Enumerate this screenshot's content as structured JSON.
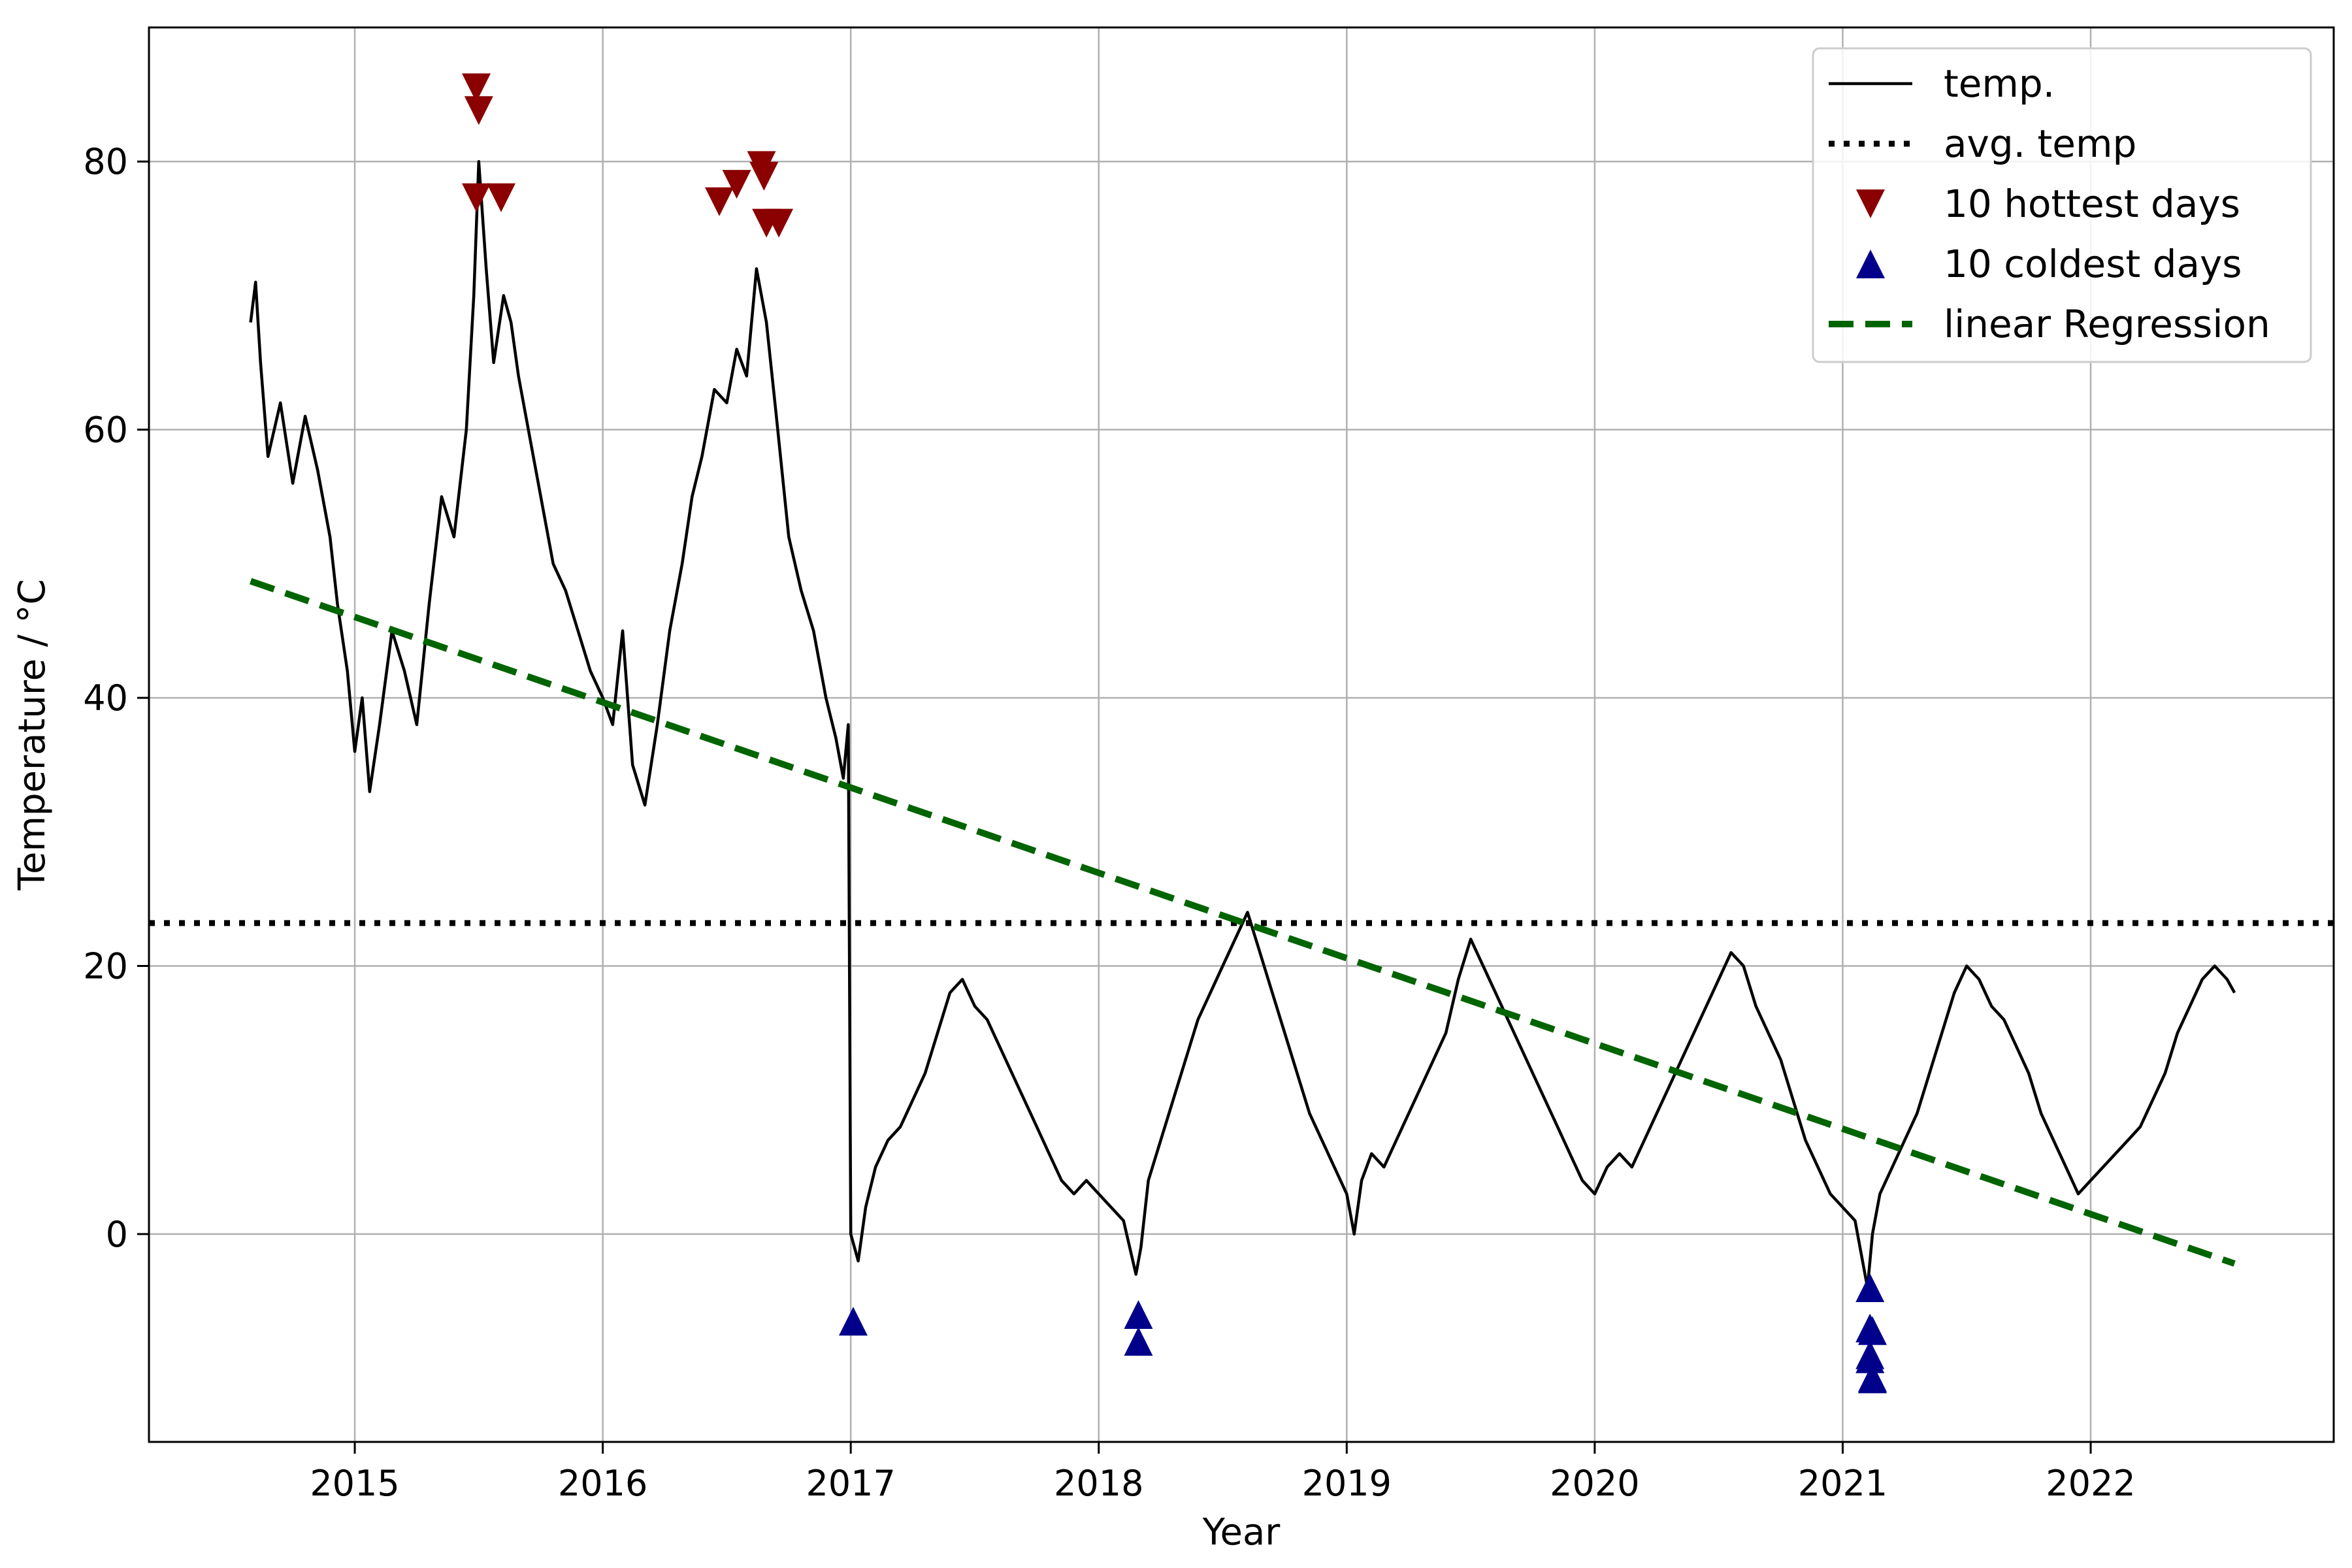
{
  "chart_data": {
    "type": "line",
    "title": "",
    "xlabel": "Year",
    "ylabel": "Temperature / °C",
    "xlim": [
      2014.17,
      2022.98
    ],
    "ylim": [
      -15.5,
      90
    ],
    "x_ticks": [
      2015,
      2016,
      2017,
      2018,
      2019,
      2020,
      2021,
      2022
    ],
    "x_tick_labels": [
      "2015",
      "2016",
      "2017",
      "2018",
      "2019",
      "2020",
      "2021",
      "2022"
    ],
    "y_ticks": [
      0,
      20,
      40,
      60,
      80
    ],
    "y_tick_labels": [
      "0",
      "20",
      "40",
      "60",
      "80"
    ],
    "grid": true,
    "legend_position": "top-right",
    "colors": {
      "temp": "#000000",
      "avg": "#000000",
      "hottest": "#8b0000",
      "coldest": "#00008b",
      "regression": "#006400",
      "grid": "#b0b0b0"
    },
    "series": [
      {
        "name": "temp.",
        "style": "solid",
        "x": [
          2014.58,
          2014.6,
          2014.62,
          2014.65,
          2014.7,
          2014.75,
          2014.8,
          2014.85,
          2014.9,
          2014.93,
          2014.97,
          2015.0,
          2015.03,
          2015.06,
          2015.1,
          2015.15,
          2015.2,
          2015.25,
          2015.3,
          2015.35,
          2015.4,
          2015.45,
          2015.48,
          2015.5,
          2015.53,
          2015.56,
          2015.6,
          2015.63,
          2015.66,
          2015.7,
          2015.75,
          2015.8,
          2015.85,
          2015.9,
          2015.95,
          2016.0,
          2016.04,
          2016.08,
          2016.12,
          2016.17,
          2016.22,
          2016.27,
          2016.32,
          2016.36,
          2016.4,
          2016.45,
          2016.5,
          2016.54,
          2016.58,
          2016.62,
          2016.66,
          2016.7,
          2016.75,
          2016.8,
          2016.85,
          2016.9,
          2016.94,
          2016.97,
          2016.99,
          2017.0,
          2017.03,
          2017.06,
          2017.1,
          2017.15,
          2017.2,
          2017.25,
          2017.3,
          2017.35,
          2017.4,
          2017.45,
          2017.5,
          2017.55,
          2017.6,
          2017.65,
          2017.7,
          2017.75,
          2017.8,
          2017.85,
          2017.9,
          2017.95,
          2018.0,
          2018.05,
          2018.1,
          2018.15,
          2018.17,
          2018.2,
          2018.25,
          2018.3,
          2018.35,
          2018.4,
          2018.45,
          2018.5,
          2018.55,
          2018.6,
          2018.65,
          2018.7,
          2018.75,
          2018.8,
          2018.85,
          2018.9,
          2018.95,
          2019.0,
          2019.03,
          2019.06,
          2019.1,
          2019.15,
          2019.2,
          2019.25,
          2019.3,
          2019.35,
          2019.4,
          2019.45,
          2019.5,
          2019.55,
          2019.6,
          2019.65,
          2019.7,
          2019.75,
          2019.8,
          2019.85,
          2019.9,
          2019.95,
          2020.0,
          2020.05,
          2020.1,
          2020.15,
          2020.2,
          2020.25,
          2020.3,
          2020.35,
          2020.4,
          2020.45,
          2020.5,
          2020.55,
          2020.6,
          2020.65,
          2020.7,
          2020.75,
          2020.8,
          2020.85,
          2020.9,
          2020.95,
          2021.0,
          2021.05,
          2021.1,
          2021.12,
          2021.15,
          2021.2,
          2021.25,
          2021.3,
          2021.35,
          2021.4,
          2021.45,
          2021.5,
          2021.55,
          2021.6,
          2021.65,
          2021.7,
          2021.75,
          2021.8,
          2021.85,
          2021.9,
          2021.95,
          2022.0,
          2022.05,
          2022.1,
          2022.15,
          2022.2,
          2022.25,
          2022.3,
          2022.35,
          2022.4,
          2022.45,
          2022.5,
          2022.55,
          2022.58
        ],
        "y": [
          68,
          71,
          65,
          58,
          62,
          56,
          61,
          57,
          52,
          47,
          42,
          36,
          40,
          33,
          38,
          45,
          42,
          38,
          47,
          55,
          52,
          60,
          70,
          80,
          72,
          65,
          70,
          68,
          64,
          60,
          55,
          50,
          48,
          45,
          42,
          40,
          38,
          45,
          35,
          32,
          38,
          45,
          50,
          55,
          58,
          63,
          62,
          66,
          64,
          72,
          68,
          61,
          52,
          48,
          45,
          40,
          37,
          34,
          38,
          0,
          -2,
          2,
          5,
          7,
          8,
          10,
          12,
          15,
          18,
          19,
          17,
          16,
          14,
          12,
          10,
          8,
          6,
          4,
          3,
          4,
          3,
          2,
          1,
          -3,
          -1,
          4,
          7,
          10,
          13,
          16,
          18,
          20,
          22,
          24,
          21,
          18,
          15,
          12,
          9,
          7,
          5,
          3,
          0,
          4,
          6,
          5,
          7,
          9,
          11,
          13,
          15,
          19,
          22,
          20,
          18,
          16,
          14,
          12,
          10,
          8,
          6,
          4,
          3,
          5,
          6,
          5,
          7,
          9,
          11,
          13,
          15,
          17,
          19,
          21,
          20,
          17,
          15,
          13,
          10,
          7,
          5,
          3,
          2,
          1,
          -4,
          0,
          3,
          5,
          7,
          9,
          12,
          15,
          18,
          20,
          19,
          17,
          16,
          14,
          12,
          9,
          7,
          5,
          3,
          4,
          5,
          6,
          7,
          8,
          10,
          12,
          15,
          17,
          19,
          20,
          19,
          18
        ]
      },
      {
        "name": "avg. temp",
        "style": "dotted",
        "y": 23.2
      },
      {
        "name": "10 hottest days",
        "style": "marker-down",
        "x": [
          2015.49,
          2015.5,
          2015.49,
          2015.59,
          2016.47,
          2016.54,
          2016.64,
          2016.65,
          2016.66,
          2016.71
        ],
        "y": [
          85.5,
          83.8,
          77.3,
          77.3,
          77.0,
          78.3,
          79.7,
          78.9,
          75.4,
          75.4
        ]
      },
      {
        "name": "10 coldest days",
        "style": "marker-up",
        "x": [
          2017.01,
          2018.16,
          2018.16,
          2021.11,
          2021.11,
          2021.12,
          2021.11,
          2021.11,
          2021.12,
          2021.12
        ],
        "y": [
          -6.5,
          -6.0,
          -8.0,
          -4.0,
          -7.0,
          -7.2,
          -9.0,
          -9.3,
          -10.7,
          -10.8
        ]
      },
      {
        "name": "linear Regression",
        "style": "dashed",
        "x": [
          2014.58,
          2022.58
        ],
        "y": [
          48.7,
          -2.2
        ]
      }
    ]
  }
}
